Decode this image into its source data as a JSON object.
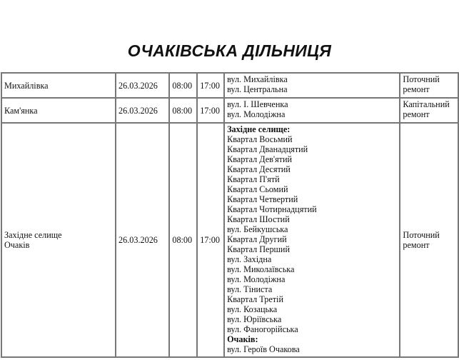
{
  "title": "ОЧАКІВСЬКА ДІЛЬНИЦЯ",
  "rows": [
    {
      "locality": [
        "Михайлівка"
      ],
      "date": "26.03.2026",
      "start": "08:00",
      "end": "17:00",
      "streets": [
        {
          "text": "вул. Михайлівка"
        },
        {
          "text": "вул. Центральна"
        }
      ],
      "work": [
        "Поточний",
        "ремонт"
      ]
    },
    {
      "locality": [
        "Кам'янка"
      ],
      "date": "26.03.2026",
      "start": "08:00",
      "end": "17:00",
      "streets": [
        {
          "text": "вул. І. Шевченка"
        },
        {
          "text": "вул. Молодіжна"
        }
      ],
      "work": [
        "Капітальний",
        "ремонт"
      ]
    },
    {
      "locality": [
        "Західне селище",
        "Очаків"
      ],
      "date": "26.03.2026",
      "start": "08:00",
      "end": "17:00",
      "streets": [
        {
          "text": "Західне селище:",
          "bold": true
        },
        {
          "text": "Квартал Восьмий"
        },
        {
          "text": "Квартал Дванадцятий"
        },
        {
          "text": "Квартал Дев'ятий"
        },
        {
          "text": "Квартал Десятий"
        },
        {
          "text": "Квартал П'ятй"
        },
        {
          "text": "Квартал Сьомий"
        },
        {
          "text": "Квартал Четвертий"
        },
        {
          "text": "Квартал Чотирнадцятий"
        },
        {
          "text": "Квартал Шостий"
        },
        {
          "text": "вул. Бейкушська"
        },
        {
          "text": "Квартал Другий"
        },
        {
          "text": "Квартал Перший"
        },
        {
          "text": "вул. Західна"
        },
        {
          "text": "вул. Миколаївська"
        },
        {
          "text": "вул. Молодіжна"
        },
        {
          "text": "вул. Тіниста"
        },
        {
          "text": "Квартал Третій"
        },
        {
          "text": "вул. Козацька"
        },
        {
          "text": "вул. Юріївська"
        },
        {
          "text": "вул. Фаногорійська"
        },
        {
          "text": "Очаків:",
          "bold": true
        },
        {
          "text": "вул. Героїв Очакова"
        }
      ],
      "work": [
        "Поточний",
        "ремонт"
      ]
    }
  ]
}
